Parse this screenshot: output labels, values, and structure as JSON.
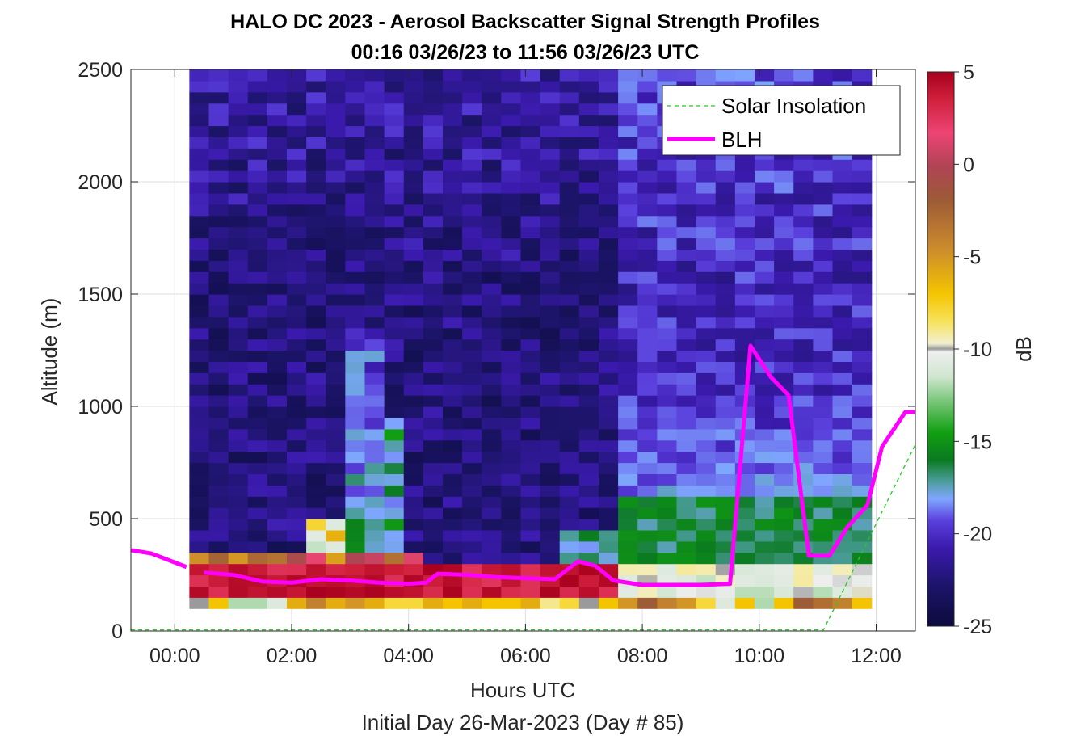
{
  "chart_data": {
    "type": "heatmap",
    "title": "HALO DC 2023 - Aerosol Backscatter Signal Strength Profiles",
    "subtitle": "00:16 03/26/23 to 11:56 03/26/23  UTC",
    "xlabel": "Hours UTC",
    "xlabel2": "Initial Day 26-Mar-2023 (Day # 85)",
    "ylabel": "Altitude (m)",
    "xlim": [
      -0.75,
      12.67
    ],
    "ylim": [
      0,
      2500
    ],
    "x_ticks": [
      0,
      2,
      4,
      6,
      8,
      10,
      12
    ],
    "x_tick_labels": [
      "00:00",
      "02:00",
      "04:00",
      "06:00",
      "08:00",
      "10:00",
      "12:00"
    ],
    "y_ticks": [
      0,
      500,
      1000,
      1500,
      2000,
      2500
    ],
    "y_tick_labels": [
      "0",
      "500",
      "1000",
      "1500",
      "2000",
      "2500"
    ],
    "grid": true,
    "legend_position": "top-right",
    "legend": [
      {
        "label": "Solar Insolation",
        "color": "#22cc22",
        "style": "dashed"
      },
      {
        "label": "BLH",
        "color": "#ff00ff",
        "style": "solid"
      }
    ],
    "colorbar": {
      "label": "dB",
      "clim": [
        -25,
        5
      ],
      "ticks": [
        5,
        0,
        -5,
        -10,
        -15,
        -20,
        -25
      ],
      "tick_labels": [
        "5",
        "0",
        "-5",
        "-10",
        "-15",
        "-20",
        "-25"
      ]
    },
    "heatmap": {
      "time_start": 0.25,
      "time_end": 11.92,
      "time_cols": 35,
      "alt_start": 100,
      "alt_end": 2500,
      "alt_rows": 48,
      "units": "dB",
      "bottom_row_dB": [
        -10,
        -7,
        -12,
        -12,
        -11,
        -6,
        -4,
        -6,
        -5,
        -6,
        -8,
        -8,
        -6,
        -7,
        -6,
        -7,
        -7,
        -6,
        -9,
        -8,
        -10,
        -7,
        -5,
        -2,
        -4,
        -5,
        -8,
        -11,
        -7,
        -12,
        -7,
        -2,
        -3,
        -4,
        -7
      ]
    },
    "series": [
      {
        "name": "BLH",
        "x": [
          -0.75,
          -0.4,
          0.2,
          0.5,
          1.0,
          1.5,
          2.0,
          2.5,
          3.0,
          3.5,
          4.0,
          4.3,
          4.5,
          5.0,
          5.5,
          6.0,
          6.5,
          6.9,
          7.2,
          7.5,
          8.0,
          8.5,
          9.0,
          9.5,
          9.85,
          10.2,
          10.5,
          10.85,
          11.2,
          11.5,
          11.85,
          12.1,
          12.5,
          12.67
        ],
        "y": [
          360,
          345,
          285,
          260,
          250,
          220,
          215,
          230,
          225,
          215,
          210,
          215,
          255,
          250,
          240,
          235,
          230,
          310,
          290,
          225,
          205,
          205,
          205,
          210,
          1270,
          1130,
          1050,
          335,
          335,
          460,
          560,
          820,
          975,
          975
        ]
      },
      {
        "name": "Solar Insolation",
        "x": [
          -0.75,
          11.1,
          12.67
        ],
        "y": [
          5,
          5,
          830
        ]
      }
    ]
  }
}
